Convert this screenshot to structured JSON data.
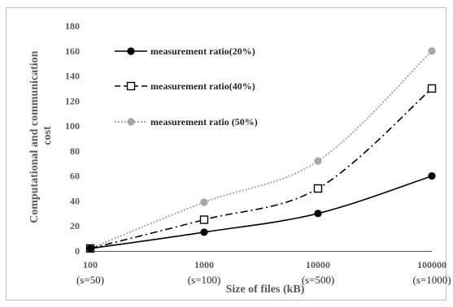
{
  "chart_data": {
    "type": "line",
    "x_scale": "log",
    "categories": [
      "100",
      "1000",
      "10000",
      "100000"
    ],
    "x": [
      100,
      1000,
      10000,
      100000
    ],
    "category_sublabels": [
      "(s=50)",
      "(s=100)",
      "(s=500)",
      "(s=1000)"
    ],
    "series": [
      {
        "name": "measurement ratio(20%)",
        "values": [
          2,
          15,
          30,
          60
        ],
        "color": "#000000",
        "line": "solid",
        "marker": "filled-circle"
      },
      {
        "name": "measurement ratio(40%)",
        "values": [
          2,
          25,
          50,
          130
        ],
        "color": "#000000",
        "line": "dash-dot",
        "marker": "open-square"
      },
      {
        "name": "measurement ratio (50%)",
        "values": [
          2,
          39,
          72,
          160
        ],
        "color": "#a6a6a6",
        "line": "dotted",
        "marker": "gray-circle"
      }
    ],
    "xlabel": "Size of files (kB)",
    "ylabel_lines": [
      "Computational and communication",
      "cost"
    ],
    "ylim": [
      0,
      180
    ],
    "yticks": [
      0,
      20,
      40,
      60,
      80,
      100,
      120,
      140,
      160,
      180
    ],
    "grid": false,
    "legend": "top-left"
  }
}
